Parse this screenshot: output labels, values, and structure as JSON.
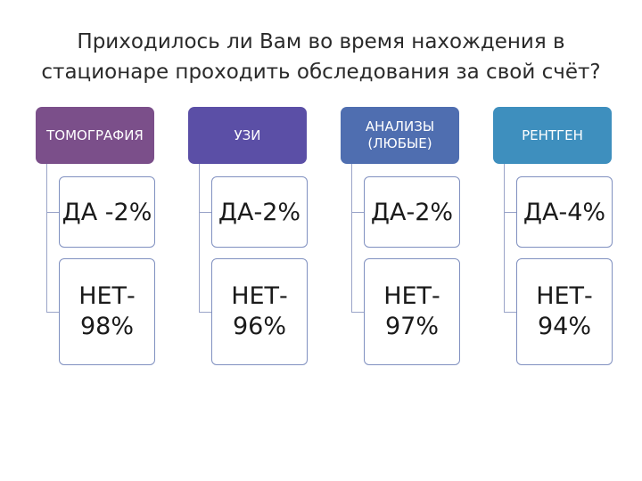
{
  "title": {
    "line1": "Приходилось ли Вам во время нахождения в",
    "line2": "стационаре проходить обследования за свой счёт?"
  },
  "columns": [
    {
      "header": "ТОМОГРАФИЯ",
      "header_color": "#7b4f8a",
      "yes": "ДА -2%",
      "no_line1": "НЕТ-",
      "no_line2": "98%"
    },
    {
      "header": "УЗИ",
      "header_color": "#5b4fa6",
      "yes": "ДА-2%",
      "no_line1": "НЕТ-",
      "no_line2": "96%"
    },
    {
      "header": "АНАЛИЗЫ (ЛЮБЫЕ)",
      "header_color": "#4f6eb0",
      "yes": "ДА-2%",
      "no_line1": "НЕТ-",
      "no_line2": "97%"
    },
    {
      "header": "РЕНТГЕН",
      "header_color": "#3e8fbe",
      "yes": "ДА-4%",
      "no_line1": "НЕТ-",
      "no_line2": "94%"
    }
  ]
}
